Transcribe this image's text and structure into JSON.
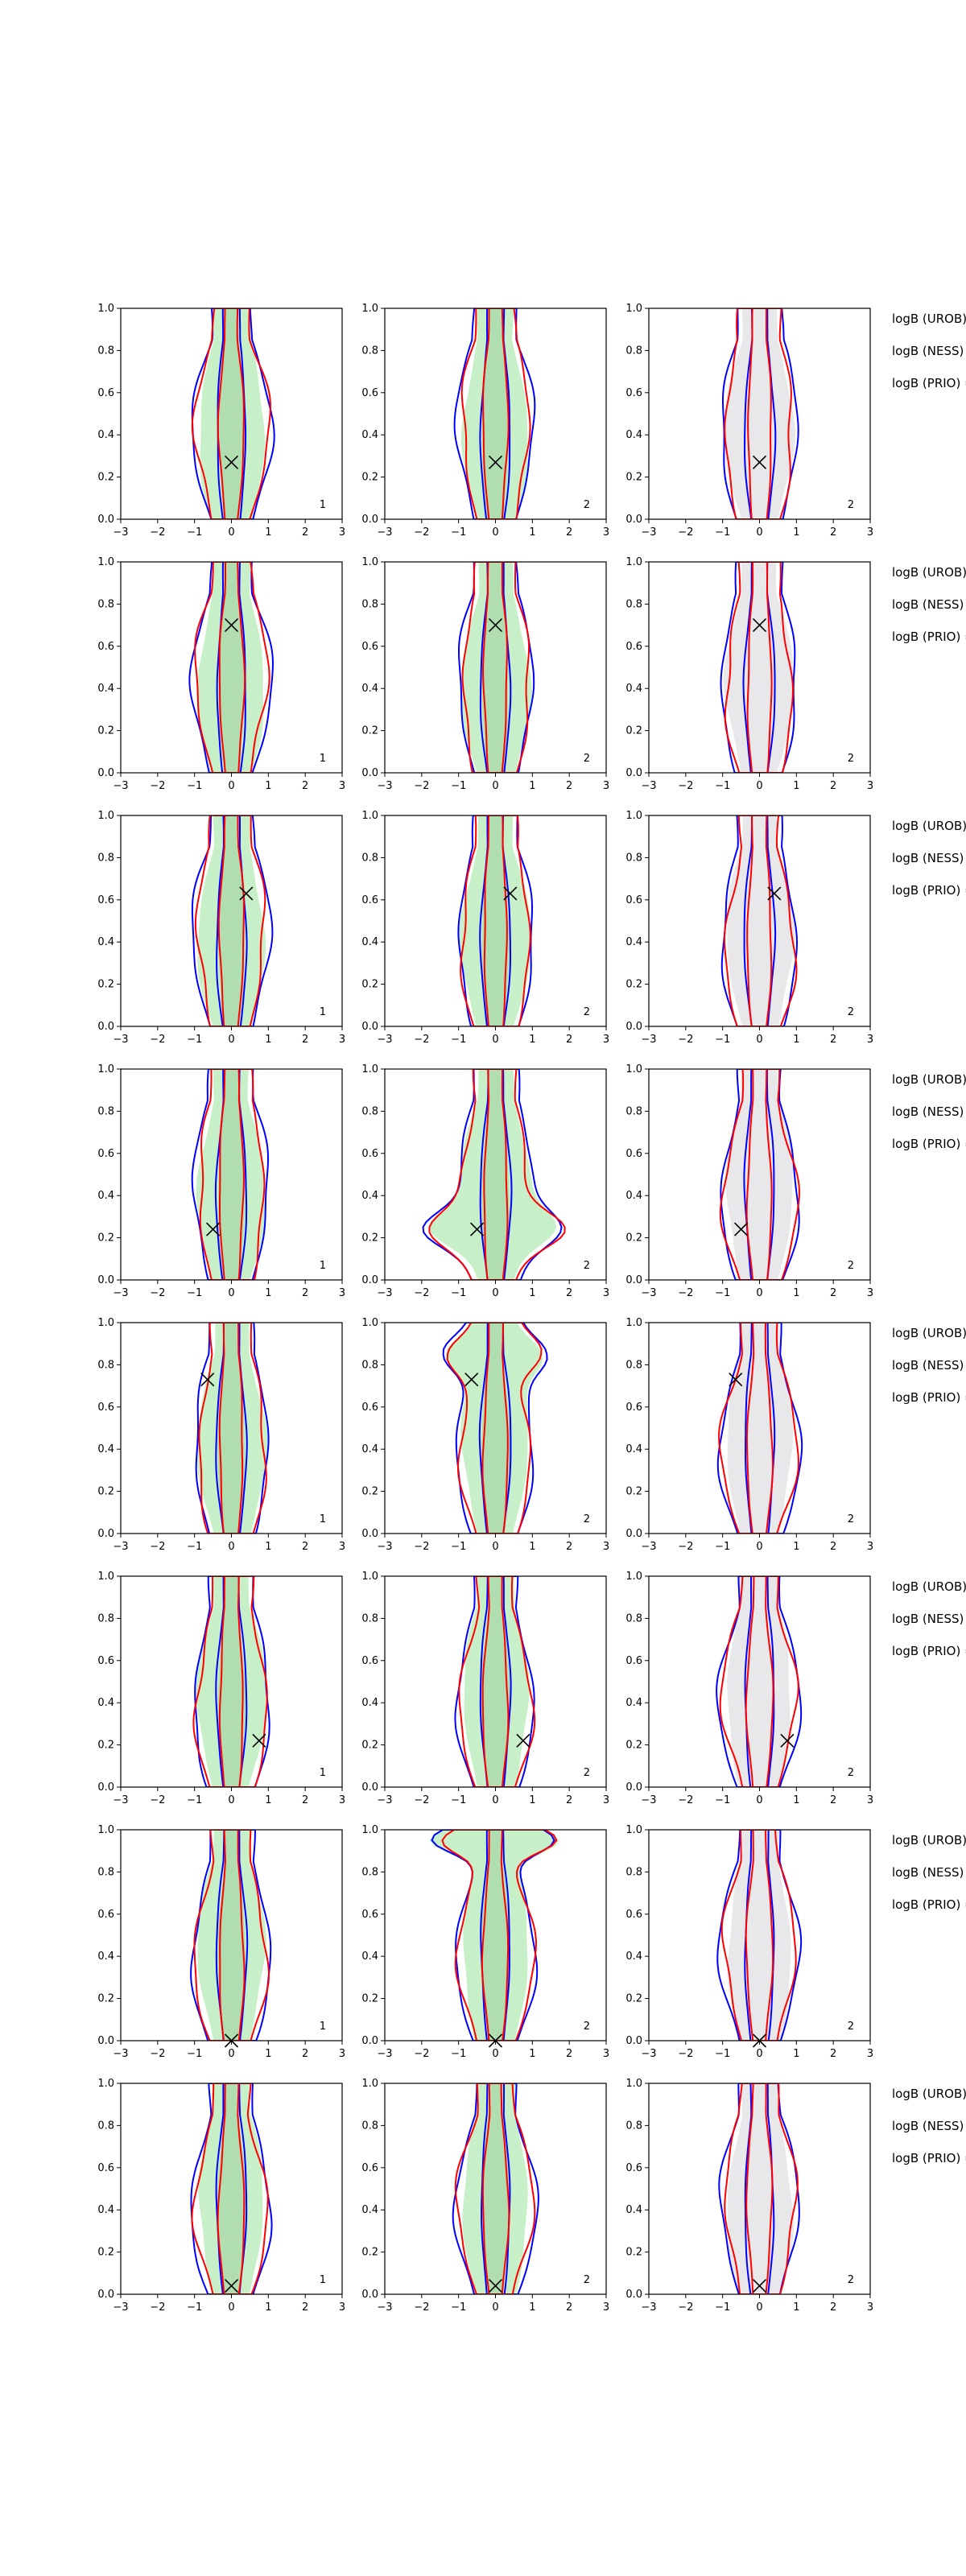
{
  "chart_data": {
    "type": "contour",
    "layout": {
      "rows": 8,
      "cols": 3
    },
    "xlim": [
      -3,
      3
    ],
    "ylim": [
      0,
      1
    ],
    "x_ticks": [
      -3,
      -2,
      -1,
      0,
      1,
      2,
      3
    ],
    "y_ticks": [
      0.0,
      0.2,
      0.4,
      0.6,
      0.8,
      1.0
    ],
    "x_tick_labels": [
      "−3",
      "−2",
      "−1",
      "0",
      "1",
      "2",
      "3"
    ],
    "y_tick_labels": [
      "0.0",
      "0.2",
      "0.4",
      "0.6",
      "0.8",
      "1.0"
    ],
    "side_labels": [
      "logB (UROB) =",
      "logB (NESS) =",
      "logB (PRIO) ="
    ],
    "colors": {
      "blue": "#0000ff",
      "red": "#ff0000",
      "green_fill": "#c8f0c8",
      "green_dark": "#9ed09e",
      "gray_fill": "#e8e8ea",
      "axis": "#000000"
    },
    "rows": [
      {
        "truth": [
          0.0,
          0.27
        ],
        "tags": [
          "1",
          "2",
          "2"
        ]
      },
      {
        "truth": [
          0.0,
          0.7
        ],
        "tags": [
          "1",
          "2",
          "2"
        ]
      },
      {
        "truth": [
          0.4,
          0.63
        ],
        "tags": [
          "1",
          "2",
          "2"
        ]
      },
      {
        "truth": [
          -0.5,
          0.24
        ],
        "tags": [
          "1",
          "2",
          "2"
        ]
      },
      {
        "truth": [
          -0.65,
          0.73
        ],
        "tags": [
          "1",
          "2",
          "2"
        ]
      },
      {
        "truth": [
          0.75,
          0.22
        ],
        "tags": [
          "1",
          "2",
          "2"
        ]
      },
      {
        "truth": [
          0.0,
          0.0
        ],
        "tags": [
          "1",
          "2",
          "2"
        ]
      },
      {
        "truth": [
          0.0,
          0.04
        ],
        "tags": [
          "1",
          "2",
          "2"
        ]
      }
    ]
  }
}
